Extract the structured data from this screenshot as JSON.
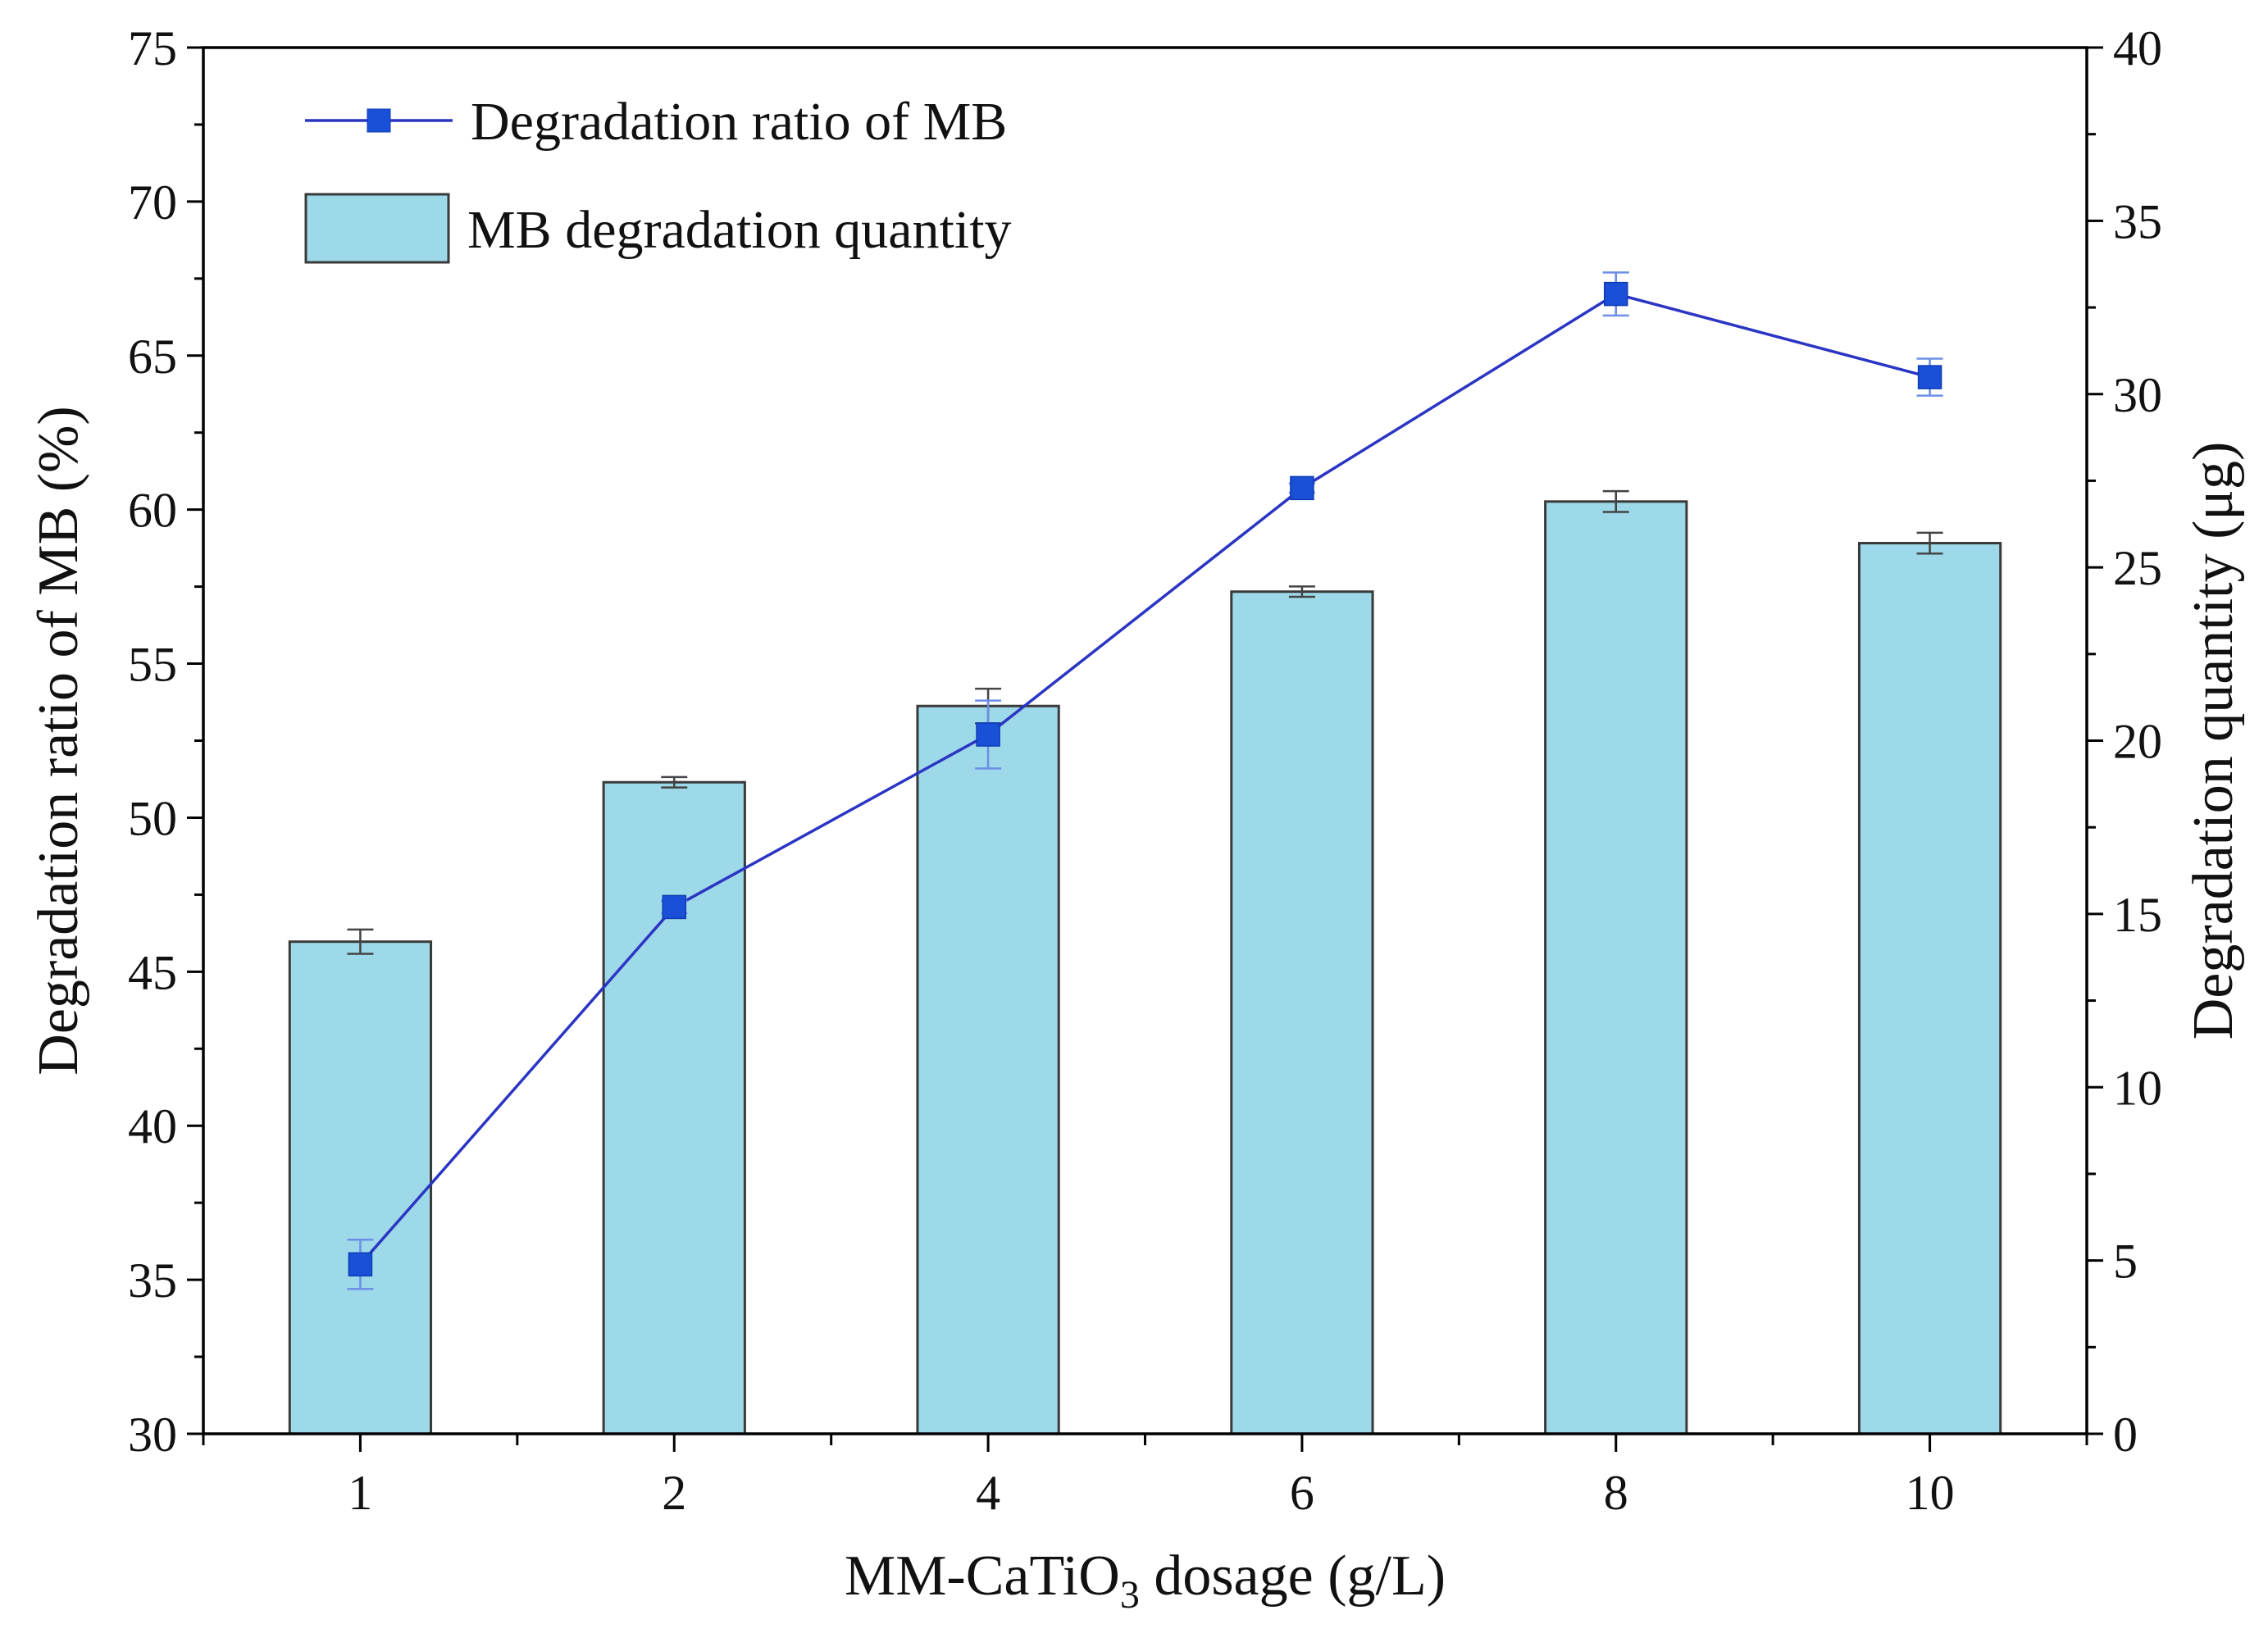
{
  "chart_data": {
    "type": "bar+line",
    "xlabel": {
      "prefix": "MM-CaTiO",
      "subscript": "3",
      "suffix": " dosage (g/L)"
    },
    "categories": [
      "1",
      "2",
      "4",
      "6",
      "8",
      "10"
    ],
    "left_axis": {
      "label": "Degradation ratio of MB (%)",
      "range": [
        30,
        75
      ],
      "ticks": [
        "30",
        "35",
        "40",
        "45",
        "50",
        "55",
        "60",
        "65",
        "70",
        "75"
      ]
    },
    "right_axis": {
      "label": "Degradation quantity (μg)",
      "range": [
        0,
        40
      ],
      "ticks": [
        "0",
        "5",
        "10",
        "15",
        "20",
        "25",
        "30",
        "35",
        "40"
      ]
    },
    "series": [
      {
        "name": "MB degradation quantity",
        "type": "bar",
        "axis": "right",
        "values": [
          14.2,
          18.8,
          21.0,
          24.3,
          26.9,
          25.7
        ],
        "errors": [
          0.35,
          0.15,
          0.5,
          0.15,
          0.3,
          0.3
        ],
        "color": "#9dd9e8",
        "edge_color": "#3a3a3a"
      },
      {
        "name": "Degradation ratio of MB",
        "type": "line",
        "axis": "left",
        "values": [
          35.5,
          47.1,
          52.7,
          60.7,
          67.0,
          64.3
        ],
        "errors": [
          0.8,
          0.2,
          1.1,
          0.15,
          0.7,
          0.6
        ],
        "color": "#1a4fd8",
        "line_color": "#2b35c4"
      }
    ]
  }
}
